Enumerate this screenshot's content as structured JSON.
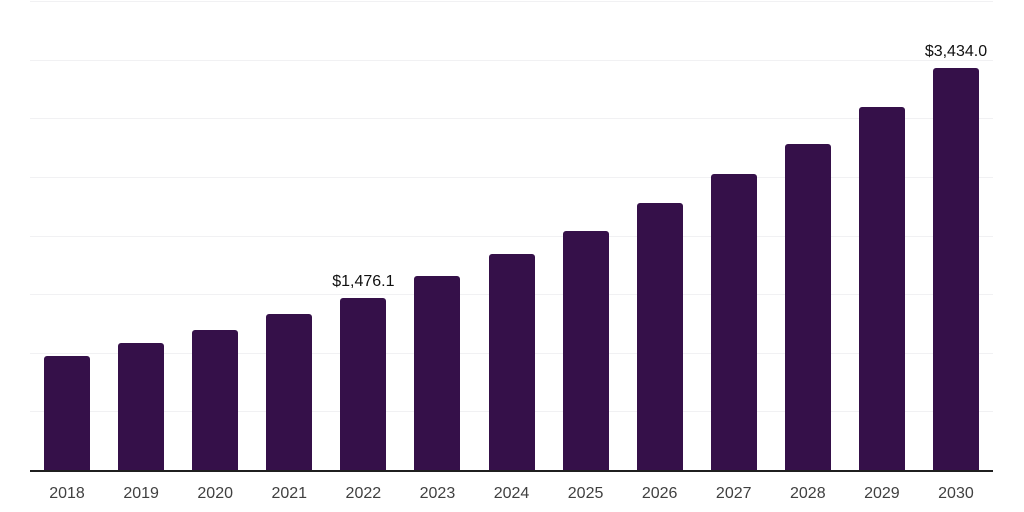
{
  "chart_data": {
    "type": "bar",
    "title": "",
    "xlabel": "",
    "ylabel": "",
    "categories": [
      "2018",
      "2019",
      "2020",
      "2021",
      "2022",
      "2023",
      "2024",
      "2025",
      "2026",
      "2027",
      "2028",
      "2029",
      "2030"
    ],
    "values": [
      985,
      1093,
      1205,
      1336,
      1476.1,
      1661,
      1850,
      2049,
      2289,
      2535,
      2789,
      3103,
      3434
    ],
    "labeled_points": [
      {
        "category": "2022",
        "label": "$1,476.1"
      },
      {
        "category": "2030",
        "label": "$3,434.0"
      }
    ],
    "ylim": [
      0,
      4000
    ],
    "gridline_step": 500,
    "grid": true,
    "legend": false,
    "colors": {
      "bar": "#351049",
      "gridline": "#f1f1f3",
      "axis": "#1f1f1f",
      "tick_label": "#404040",
      "value_label": "#111111",
      "background": "#ffffff"
    }
  }
}
